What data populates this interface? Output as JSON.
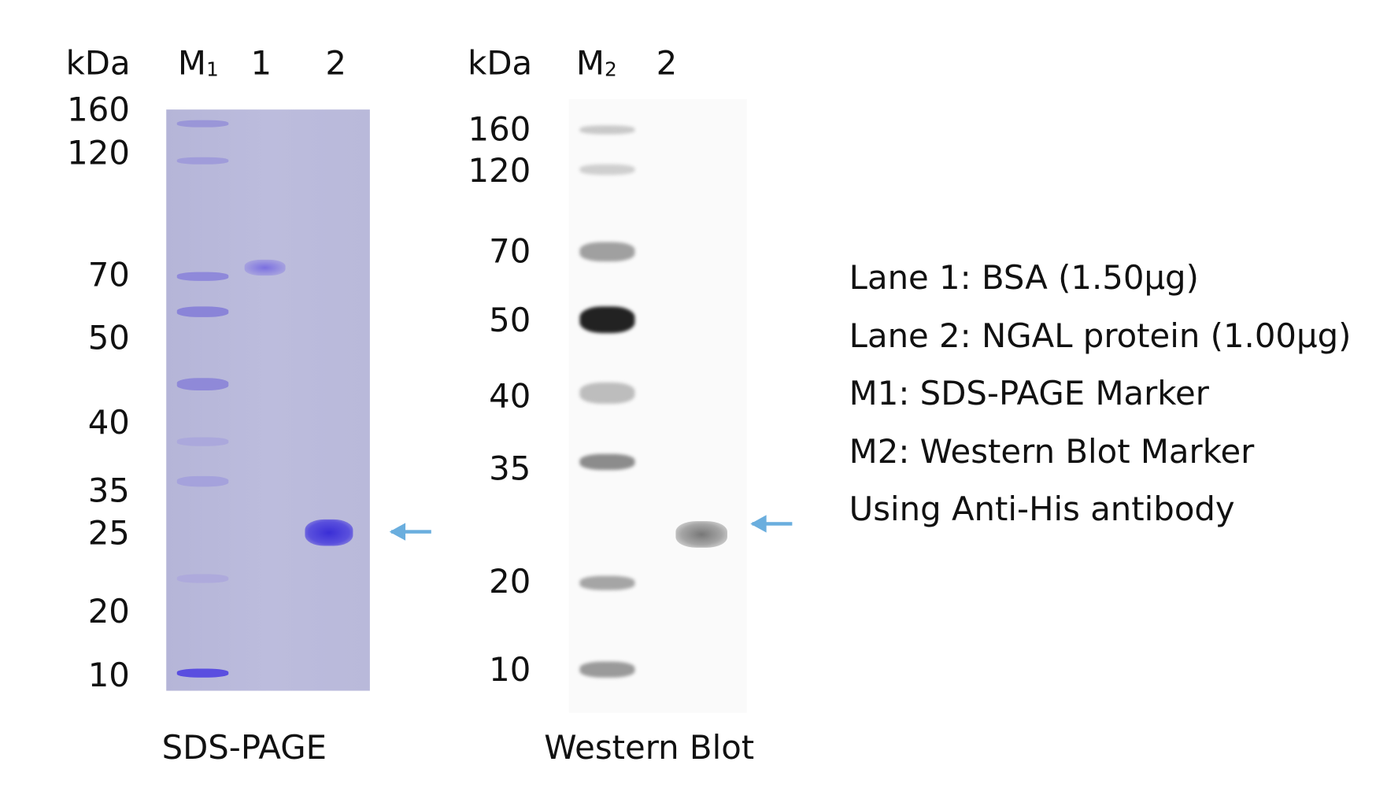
{
  "sds_page": {
    "title": "SDS-PAGE",
    "kda_label": "kDa",
    "lane_labels": {
      "marker": "M",
      "marker_sub": "1",
      "lane1": "1",
      "lane2": "2"
    },
    "marker_kda": [
      "160",
      "120",
      "70",
      "50",
      "40",
      "35",
      "25",
      "20",
      "10"
    ],
    "gel_color": "#b9b9da",
    "band_color": "#4b3fd6"
  },
  "western_blot": {
    "title": "Western Blot",
    "kda_label": "kDa",
    "lane_labels": {
      "marker": "M",
      "marker_sub": "2",
      "lane2": "2"
    },
    "marker_kda": [
      "160",
      "120",
      "70",
      "50",
      "40",
      "35",
      "20",
      "10"
    ]
  },
  "arrow_color": "#6aaede",
  "legend": [
    "Lane 1: BSA (1.50μg)",
    "Lane 2: NGAL protein (1.00μg)",
    "M1: SDS-PAGE Marker",
    "M2: Western Blot Marker",
    "Using Anti-His antibody"
  ]
}
